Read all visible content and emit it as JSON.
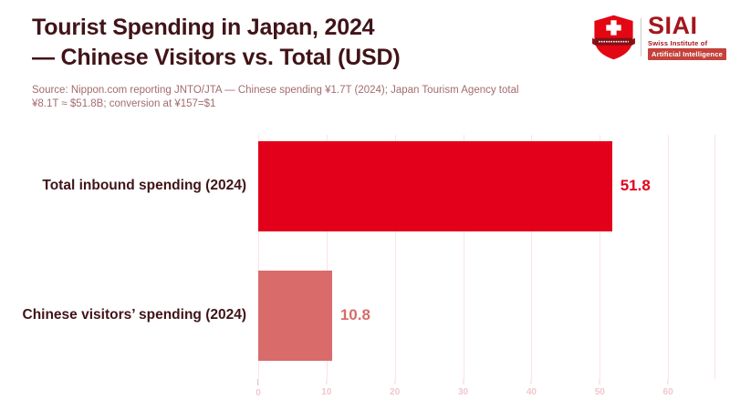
{
  "title": {
    "line1": "Tourist Spending in Japan, 2024",
    "line2": "— Chinese Visitors vs. Total (USD)"
  },
  "source": {
    "line1": "Source: Nippon.com reporting JNTO/JTA — Chinese spending ¥1.7T (2024); Japan Tourism Agency total",
    "line2": "¥8.1T ≈ $51.8B; conversion at ¥157=$1"
  },
  "logo": {
    "wordmark": "SIAI",
    "subtitle1": "Swiss Institute of",
    "subtitle2": "Artificial Intelligence"
  },
  "chart_data": {
    "type": "bar",
    "orientation": "horizontal",
    "title": "Tourist Spending in Japan, 2024 — Chinese Visitors vs. Total (USD)",
    "categories": [
      "Total inbound spending (2024)",
      "Chinese visitors’ spending (2024)"
    ],
    "values": [
      51.8,
      10.8
    ],
    "value_labels": [
      "51.8",
      "10.8"
    ],
    "bar_colors": [
      "#e2001b",
      "#d96b6b"
    ],
    "x_ticks": [
      0,
      10,
      20,
      30,
      40,
      50,
      60
    ],
    "xlim": [
      0,
      66.8
    ],
    "grid": true,
    "legend": "none"
  },
  "colors": {
    "title_text": "#401418",
    "source_text": "#a36b6e",
    "grid_line": "#fbe3e6",
    "tick_label": "#f2c6cc",
    "tick_mark": "#f6d3d8",
    "tick_zero": "#bdbdbd",
    "divider": "#c8c8c8",
    "logo_red": "#e30613",
    "logo_text": "#a4161c",
    "ribbon": "#c4423c",
    "banner": "#7f1116"
  }
}
